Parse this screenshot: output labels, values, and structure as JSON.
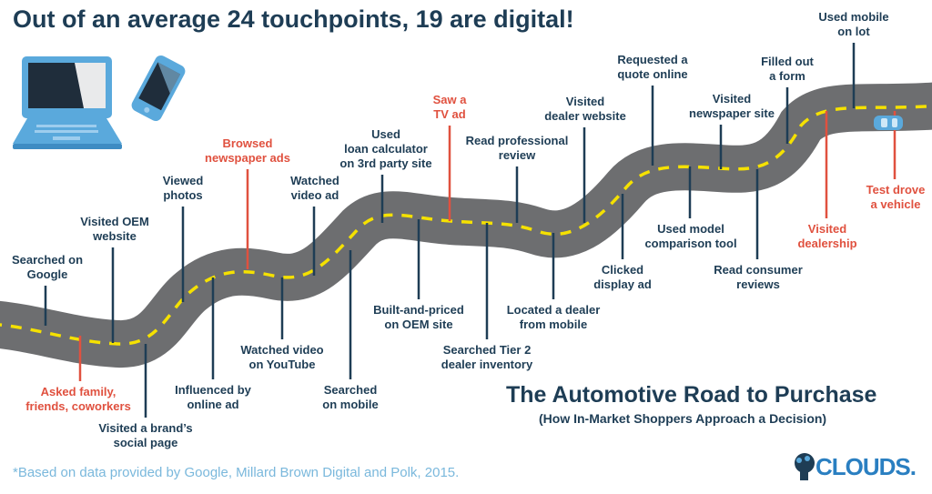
{
  "headline": "Out of an average 24 touchpoints, 19 are digital!",
  "title": "The Automotive Road to Purchase",
  "subtitle": "(How In-Market Shoppers Approach a Decision)",
  "footnote": "*Based on data provided by Google, Millard Brown Digital and Polk, 2015.",
  "logo": {
    "text": "CLOUDS."
  },
  "colors": {
    "road": "#6d6e70",
    "road_dash": "#f5e100",
    "digital": "#1e3d55",
    "offline": "#e0513f",
    "footnote": "#7ab8dc",
    "logo": "#2a7fc1"
  },
  "icons": [
    "laptop-icon",
    "smartphone-icon",
    "car-icon",
    "clouds-logo-icon"
  ],
  "touchpoints": [
    {
      "text": "Searched on\nGoogle",
      "type": "digital"
    },
    {
      "text": "Asked family,\nfriends, coworkers",
      "type": "offline"
    },
    {
      "text": "Visited OEM\nwebsite",
      "type": "digital"
    },
    {
      "text": "Visited a brand’s\nsocial page",
      "type": "digital"
    },
    {
      "text": "Viewed\nphotos",
      "type": "digital"
    },
    {
      "text": "Influenced by\nonline ad",
      "type": "digital"
    },
    {
      "text": "Browsed\nnewspaper ads",
      "type": "offline"
    },
    {
      "text": "Watched video\non YouTube",
      "type": "digital"
    },
    {
      "text": "Watched\nvideo ad",
      "type": "digital"
    },
    {
      "text": "Searched\non mobile",
      "type": "digital"
    },
    {
      "text": "Used\nloan calculator\non 3rd party site",
      "type": "digital"
    },
    {
      "text": "Built-and-priced\non OEM site",
      "type": "digital"
    },
    {
      "text": "Saw a\nTV ad",
      "type": "offline"
    },
    {
      "text": "Searched Tier 2\ndealer inventory",
      "type": "digital"
    },
    {
      "text": "Read professional\nreview",
      "type": "digital"
    },
    {
      "text": "Located a dealer\nfrom mobile",
      "type": "digital"
    },
    {
      "text": "Visited\ndealer website",
      "type": "digital"
    },
    {
      "text": "Clicked\ndisplay ad",
      "type": "digital"
    },
    {
      "text": "Requested a\nquote online",
      "type": "digital"
    },
    {
      "text": "Used model\ncomparison tool",
      "type": "digital"
    },
    {
      "text": "Visited\nnewspaper site",
      "type": "digital"
    },
    {
      "text": "Read consumer\nreviews",
      "type": "digital"
    },
    {
      "text": "Filled out\na form",
      "type": "digital"
    },
    {
      "text": "Visited\ndealership",
      "type": "offline"
    },
    {
      "text": "Used mobile\non lot",
      "type": "digital"
    },
    {
      "text": "Test drove\na vehicle",
      "type": "offline"
    }
  ]
}
